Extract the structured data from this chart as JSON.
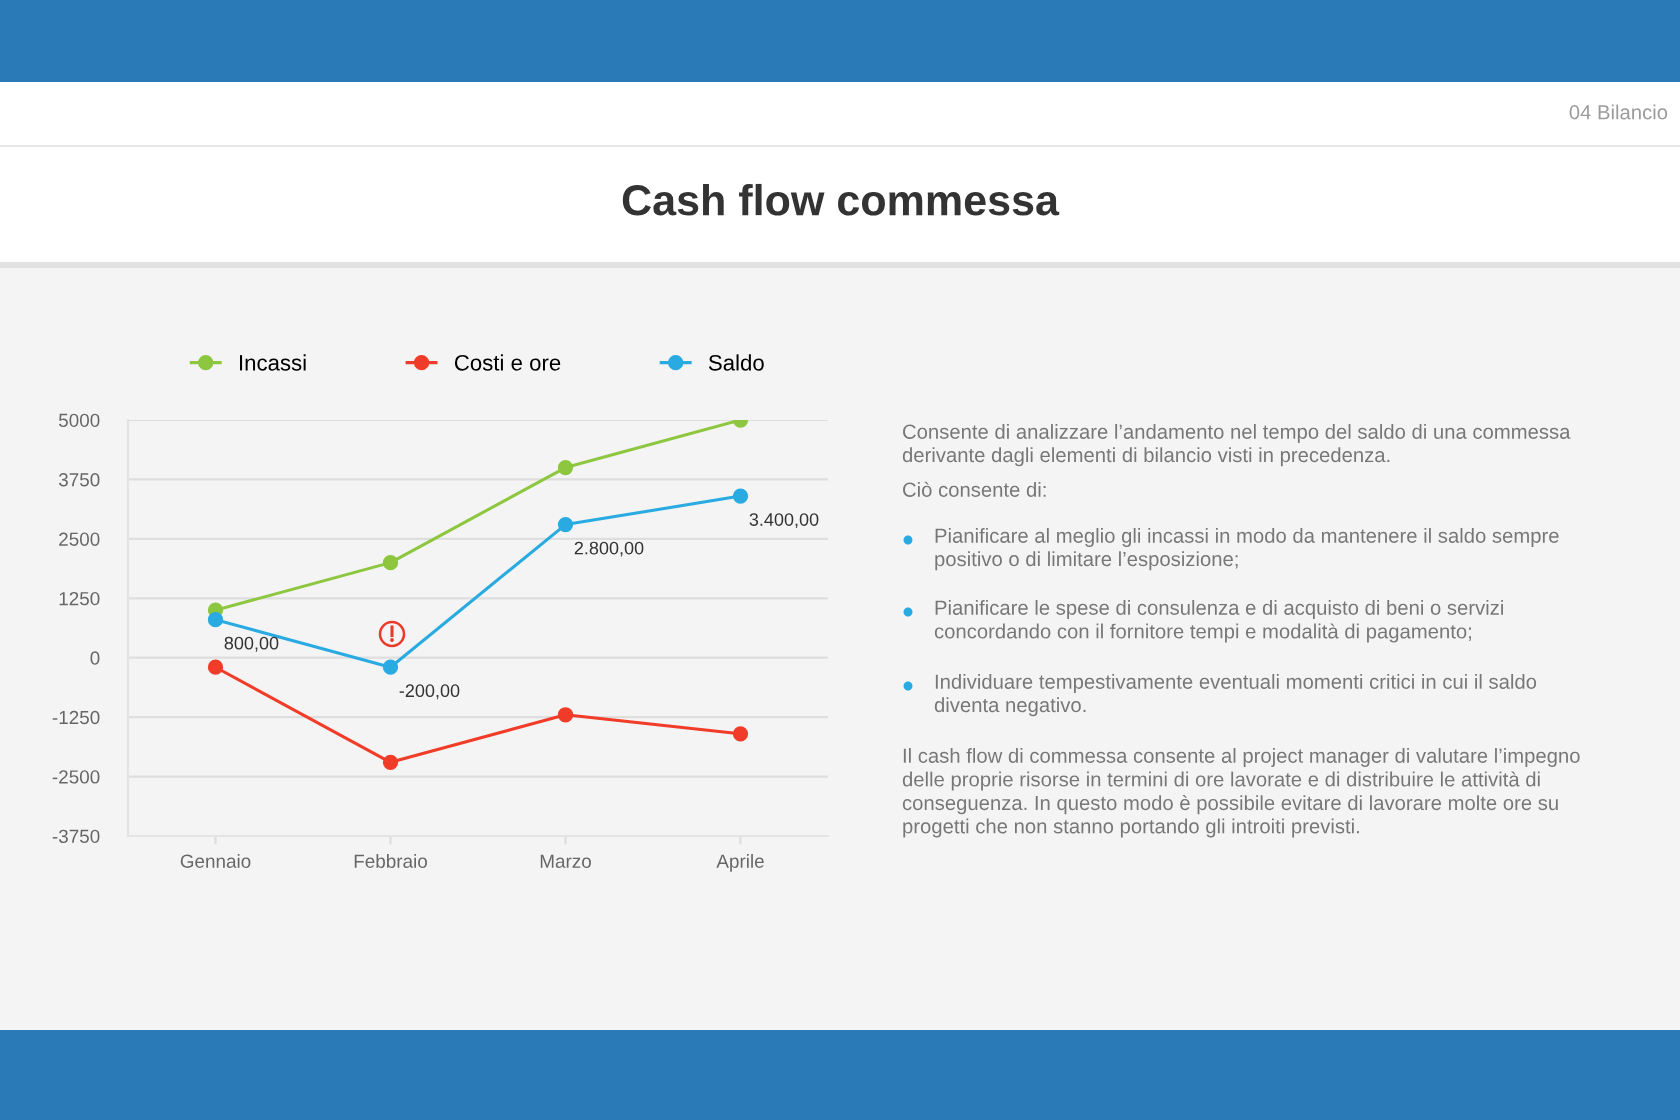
{
  "chart_data": {
    "type": "line",
    "title": "Cash flow commessa",
    "categories": [
      "Gennaio",
      "Febbraio",
      "Marzo",
      "Aprile"
    ],
    "series": [
      {
        "name": "Incassi",
        "color": "#8dc63f",
        "values": [
          1000,
          2000,
          4000,
          5000
        ]
      },
      {
        "name": "Costi e ore",
        "color": "#f03c28",
        "values": [
          -200,
          -2200,
          -1200,
          -1600
        ]
      },
      {
        "name": "Saldo",
        "color": "#29abe2",
        "values": [
          800,
          -200,
          2800,
          3400
        ],
        "value_labels": [
          "800,00",
          "-200,00",
          "2.800,00",
          "3.400,00"
        ]
      }
    ],
    "ylim": [
      -3750,
      5000
    ],
    "yticks": [
      -3750,
      -2500,
      -1250,
      0,
      1250,
      2500,
      3750,
      5000
    ],
    "grid": "y",
    "legend": "top",
    "marker": "circle",
    "line_style": "solid",
    "annotations": [
      "04 Bilancio",
      "Consente di analizzare l’andamento nel tempo del saldo di una commessa\nderivante dagli elementi di bilancio visti in precedenza.",
      "Ciò consente di:",
      "Pianificare al meglio gli incassi in modo da mantenere il saldo sempre\npositivo o di limitare l’esposizione;",
      "Pianificare le spese di consulenza e di acquisto di beni o servizi\nconcordando con il fornitore tempi e modalità di pagamento;",
      "Individuare tempestivamente eventuali momenti critici in cui il saldo\ndiventa negativo.",
      "Il cash flow di commessa consente al project manager di valutare l’impegno\ndelle proprie risorse in termini di ore lavorate e di distribuire le attività di\nconseguenza. In questo modo è possibile evitare di lavorare molte ore su\nprogetti che non stanno portando gli introiti previsti."
    ]
  }
}
